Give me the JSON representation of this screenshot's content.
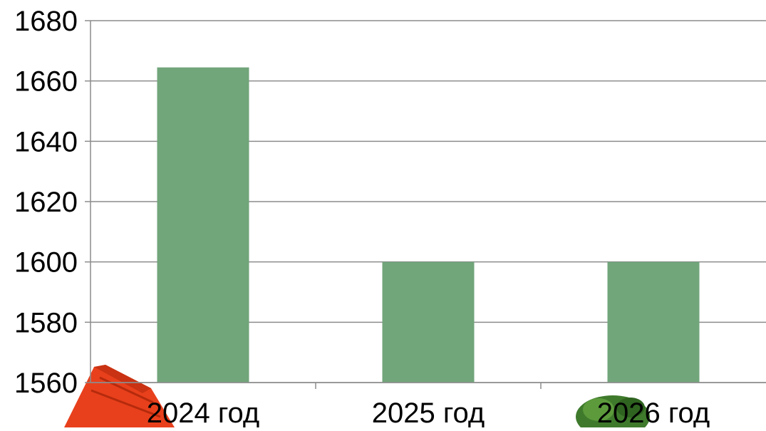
{
  "chart_data": {
    "type": "bar",
    "categories": [
      "2024 год",
      "2025 год",
      "2026 год"
    ],
    "values": [
      1664.5,
      1600,
      1600
    ],
    "ylim": [
      1560,
      1680
    ],
    "yticks": [
      "1560",
      "1580",
      "1600",
      "1620",
      "1640",
      "1660",
      "1680"
    ],
    "grid": true,
    "legend": "none"
  },
  "colors": {
    "bar": "#71a57a",
    "grid": "#8c8c8c",
    "axis": "#8c8c8c",
    "house_roof": "#e8401c",
    "tree": "#3f7a2c"
  },
  "decorations": {
    "left_image_icon": "house-roof-icon",
    "right_image_icon": "tree-icon"
  }
}
